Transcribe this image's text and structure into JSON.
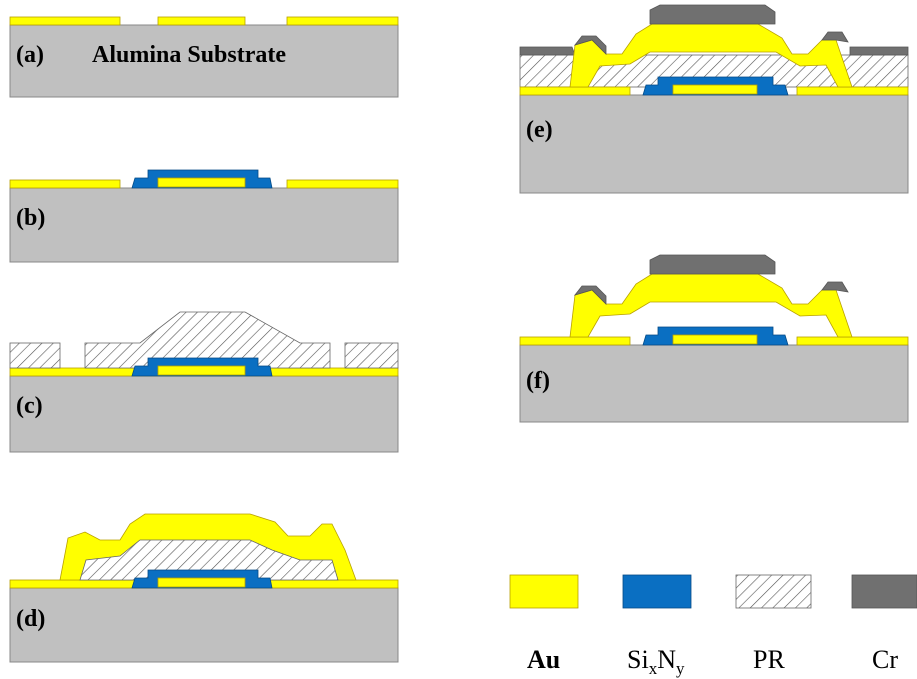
{
  "panels": [
    {
      "label": "(a)",
      "caption": "Alumina Substrate"
    },
    {
      "label": "(b)"
    },
    {
      "label": "(c)"
    },
    {
      "label": "(d)"
    },
    {
      "label": "(e)"
    },
    {
      "label": "(f)"
    }
  ],
  "legend": [
    {
      "label": "Au"
    },
    {
      "parts": [
        "Si",
        "x",
        "N",
        "y"
      ]
    },
    {
      "label": "PR"
    },
    {
      "label": "Cr"
    }
  ]
}
